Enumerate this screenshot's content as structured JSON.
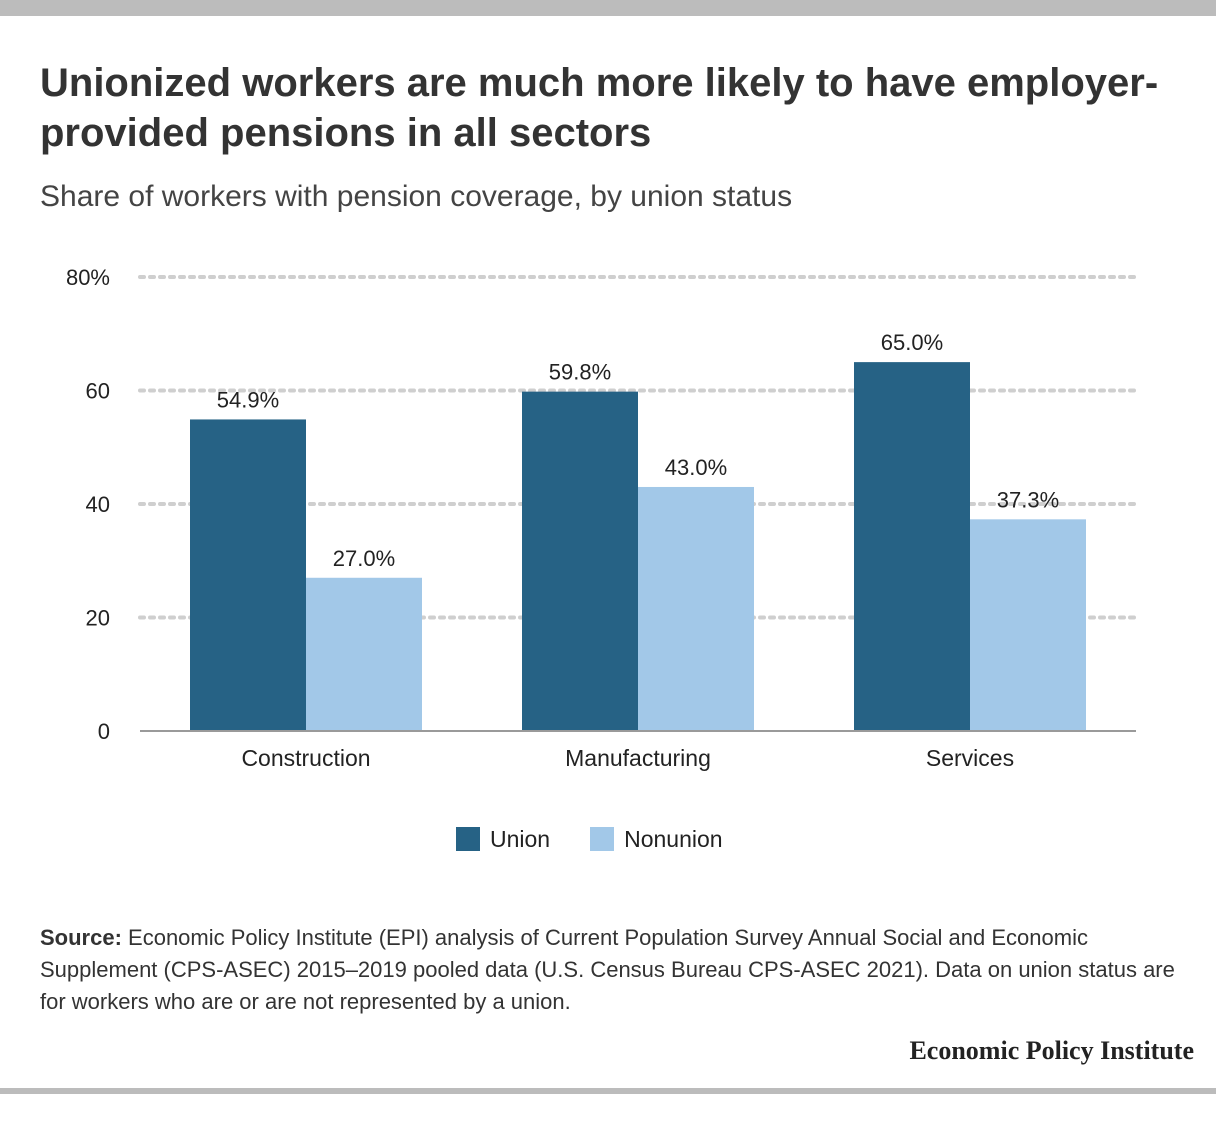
{
  "title": "Unionized workers are much more likely to have employer-provided pensions in all sectors",
  "subtitle": "Share of workers with pension coverage, by union status",
  "source": {
    "label": "Source:",
    "text": " Economic Policy Institute (EPI) analysis of Current Population Survey Annual Social and Economic Supplement (CPS-ASEC) 2015–2019 pooled data (U.S. Census Bureau CPS-ASEC 2021). Data on union status are for workers who are or are not represented by a union."
  },
  "brand": "Economic Policy Institute",
  "colors": {
    "union": "#266285",
    "nonunion": "#a2c8e8"
  },
  "chart_data": {
    "type": "bar",
    "categories": [
      "Construction",
      "Manufacturing",
      "Services"
    ],
    "series": [
      {
        "name": "Union",
        "values": [
          54.9,
          59.8,
          65.0
        ],
        "labels": [
          "54.9%",
          "59.8%",
          "65.0%"
        ]
      },
      {
        "name": "Nonunion",
        "values": [
          27.0,
          43.0,
          37.3
        ],
        "labels": [
          "27.0%",
          "43.0%",
          "37.3%"
        ]
      }
    ],
    "ylim": [
      0,
      80
    ],
    "yticks": [
      0,
      20,
      40,
      60,
      80
    ],
    "ytick_labels": [
      "0",
      "20",
      "40",
      "60",
      "80%"
    ],
    "grid": true,
    "legend": "bottom"
  }
}
